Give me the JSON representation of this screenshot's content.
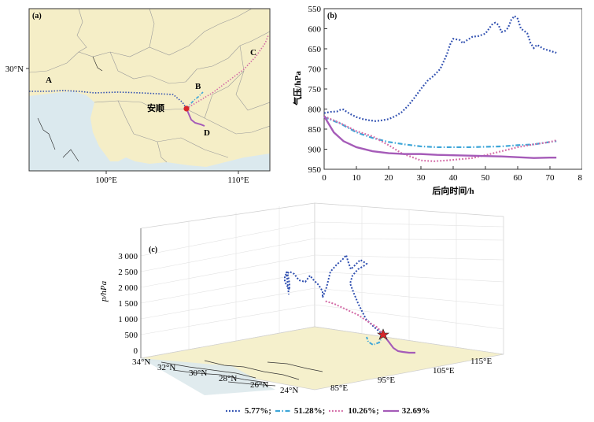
{
  "chart_data": [
    {
      "panel": "(a)",
      "type": "map",
      "x_ticks": [
        "100°E",
        "110°E"
      ],
      "y_ticks": [
        "30°N"
      ],
      "station": "安顺",
      "trajectory_labels": [
        "A",
        "B",
        "C",
        "D"
      ],
      "colors": {
        "land": "#f5eec7",
        "sea": "#dbe9ee",
        "A": "#2f4fb0",
        "B": "#3ea6d8",
        "C": "#d36aa6",
        "D": "#a55bb8",
        "station": "#d8262b"
      }
    },
    {
      "panel": "(b)",
      "type": "line",
      "xlabel": "后向时间/h",
      "ylabel": "气压/hPa",
      "xlim": [
        0,
        80
      ],
      "ylim": [
        550,
        950
      ],
      "y_inverted": true,
      "x_ticks": [
        0,
        10,
        20,
        30,
        40,
        50,
        60,
        70,
        80
      ],
      "y_ticks": [
        550,
        600,
        650,
        700,
        750,
        800,
        850,
        900,
        950
      ],
      "series": [
        {
          "key": "A",
          "style": "dotted",
          "color": "#2f4fb0",
          "x": [
            0,
            2,
            4,
            5,
            6,
            7,
            8,
            10,
            12,
            14,
            16,
            18,
            20,
            22,
            24,
            26,
            28,
            30,
            32,
            34,
            36,
            38,
            39,
            40,
            42,
            43,
            44,
            46,
            48,
            50,
            52,
            53,
            54,
            55,
            56,
            57,
            58,
            59,
            60,
            61,
            62,
            63,
            64,
            65,
            66,
            68,
            70,
            72
          ],
          "y": [
            810,
            807,
            806,
            802,
            801,
            807,
            812,
            820,
            825,
            828,
            830,
            828,
            825,
            818,
            808,
            792,
            772,
            750,
            730,
            717,
            700,
            665,
            640,
            625,
            628,
            636,
            630,
            620,
            618,
            612,
            590,
            585,
            590,
            608,
            606,
            598,
            578,
            568,
            575,
            600,
            605,
            612,
            636,
            648,
            640,
            650,
            655,
            660
          ]
        },
        {
          "key": "B",
          "style": "dash-dot",
          "color": "#3ea6d8",
          "x": [
            0,
            5,
            10,
            15,
            20,
            25,
            30,
            35,
            40,
            45,
            50,
            55,
            60,
            65,
            70,
            72
          ],
          "y": [
            820,
            836,
            858,
            872,
            882,
            888,
            893,
            895,
            895,
            895,
            894,
            893,
            890,
            888,
            882,
            880
          ]
        },
        {
          "key": "C",
          "style": "dotted",
          "color": "#d36aa6",
          "x": [
            0,
            5,
            10,
            15,
            20,
            24,
            28,
            30,
            34,
            38,
            42,
            46,
            50,
            55,
            60,
            65,
            70,
            72
          ],
          "y": [
            818,
            835,
            855,
            868,
            890,
            910,
            922,
            928,
            930,
            928,
            925,
            922,
            915,
            905,
            895,
            888,
            882,
            878
          ]
        },
        {
          "key": "D",
          "style": "solid",
          "color": "#a55bb8",
          "x": [
            0,
            3,
            6,
            10,
            15,
            20,
            25,
            30,
            35,
            40,
            45,
            50,
            55,
            60,
            65,
            70,
            72
          ],
          "y": [
            818,
            858,
            880,
            895,
            905,
            910,
            912,
            912,
            914,
            915,
            916,
            917,
            918,
            920,
            922,
            921,
            921
          ]
        }
      ]
    },
    {
      "panel": "(c)",
      "type": "3d-line",
      "zlabel": "p/hPa",
      "z_ticks": [
        "3 000",
        "2 500",
        "2 000",
        "1 500",
        "1 000",
        "500",
        "0"
      ],
      "lat_ticks": [
        "34°N",
        "32°N",
        "30°N",
        "28°N",
        "26°N",
        "24°N"
      ],
      "lon_ticks": [
        "85°E",
        "95°E",
        "105°E",
        "115°E"
      ],
      "series": [
        {
          "key": "A",
          "color": "#2f4fb0",
          "style": "dotted"
        },
        {
          "key": "B",
          "color": "#3ea6d8",
          "style": "dash-dot"
        },
        {
          "key": "C",
          "color": "#d36aa6",
          "style": "dotted"
        },
        {
          "key": "D",
          "color": "#a55bb8",
          "style": "solid"
        }
      ]
    }
  ],
  "legend": [
    {
      "label": "5.77%;",
      "color": "#2f4fb0",
      "style": "dotted"
    },
    {
      "label": "51.28%;",
      "color": "#3ea6d8",
      "style": "dash-dot"
    },
    {
      "label": "10.26%;",
      "color": "#d36aa6",
      "style": "dotted"
    },
    {
      "label": "32.69%",
      "color": "#a55bb8",
      "style": "solid"
    }
  ]
}
